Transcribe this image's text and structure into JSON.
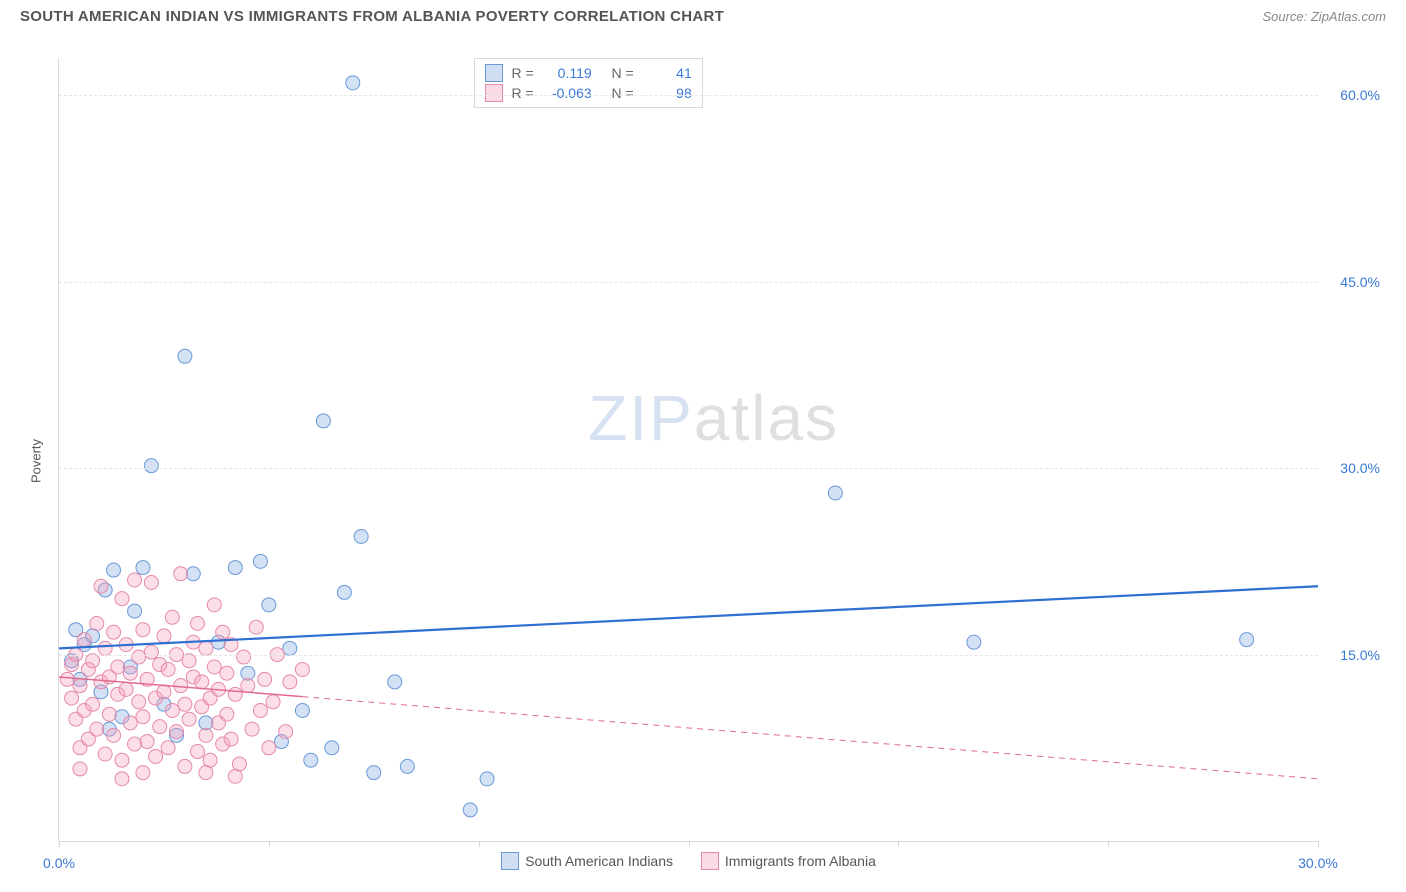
{
  "header": {
    "title": "SOUTH AMERICAN INDIAN VS IMMIGRANTS FROM ALBANIA POVERTY CORRELATION CHART",
    "source": "Source: ZipAtlas.com"
  },
  "chart": {
    "type": "scatter",
    "ylabel": "Poverty",
    "xlim": [
      0,
      30
    ],
    "ylim": [
      0,
      63
    ],
    "xticks": [
      0,
      5,
      10,
      15,
      20,
      25,
      30
    ],
    "xtick_labels": [
      "0.0%",
      "",
      "",
      "",
      "",
      "",
      "30.0%"
    ],
    "yticks": [
      15,
      30,
      45,
      60
    ],
    "ytick_labels": [
      "15.0%",
      "30.0%",
      "45.0%",
      "60.0%"
    ],
    "grid_color": "#e5e5e5",
    "axis_color": "#d9d9d9",
    "background_color": "#ffffff",
    "watermark": {
      "zip": "ZIP",
      "atlas": "atlas"
    },
    "series": [
      {
        "name": "South American Indians",
        "color_fill": "rgba(130,170,225,0.35)",
        "color_stroke": "#6a99d8",
        "marker_radius": 7,
        "stats": {
          "R": "0.119",
          "N": "41"
        },
        "trend": {
          "y_at_x0": 15.5,
          "y_at_xmax": 20.5,
          "stroke": "#2e6fd1",
          "width": 2.2,
          "dash": "",
          "solid_until_x": 30
        },
        "points": [
          [
            0.3,
            14.5
          ],
          [
            0.4,
            17
          ],
          [
            0.5,
            13
          ],
          [
            0.6,
            15.8
          ],
          [
            0.8,
            16.5
          ],
          [
            1.0,
            12
          ],
          [
            1.1,
            20.2
          ],
          [
            1.3,
            21.8
          ],
          [
            1.5,
            10
          ],
          [
            1.7,
            14
          ],
          [
            1.8,
            18.5
          ],
          [
            2.0,
            22
          ],
          [
            2.2,
            30.2
          ],
          [
            2.5,
            11
          ],
          [
            3.0,
            39
          ],
          [
            3.2,
            21.5
          ],
          [
            3.5,
            9.5
          ],
          [
            4.2,
            22
          ],
          [
            4.5,
            13.5
          ],
          [
            5.0,
            19
          ],
          [
            5.3,
            8
          ],
          [
            5.5,
            15.5
          ],
          [
            5.8,
            10.5
          ],
          [
            6.0,
            6.5
          ],
          [
            6.3,
            33.8
          ],
          [
            6.5,
            7.5
          ],
          [
            6.8,
            20
          ],
          [
            7.0,
            61
          ],
          [
            7.2,
            24.5
          ],
          [
            7.5,
            5.5
          ],
          [
            8.0,
            12.8
          ],
          [
            8.3,
            6
          ],
          [
            9.8,
            2.5
          ],
          [
            10.2,
            5
          ],
          [
            18.5,
            28
          ],
          [
            21.8,
            16
          ],
          [
            28.3,
            16.2
          ],
          [
            2.8,
            8.5
          ],
          [
            3.8,
            16
          ],
          [
            1.2,
            9
          ],
          [
            4.8,
            22.5
          ]
        ]
      },
      {
        "name": "Immigrants from Albania",
        "color_fill": "rgba(245,160,190,0.35)",
        "color_stroke": "#e58aa8",
        "marker_radius": 7,
        "stats": {
          "R": "-0.063",
          "N": "98"
        },
        "trend": {
          "y_at_x0": 13.2,
          "y_at_xmax": 5.0,
          "stroke": "#e26a8f",
          "width": 1.5,
          "dash": "6,5",
          "solid_until_x": 5.8
        },
        "points": [
          [
            0.2,
            13
          ],
          [
            0.3,
            11.5
          ],
          [
            0.3,
            14.2
          ],
          [
            0.4,
            9.8
          ],
          [
            0.4,
            15
          ],
          [
            0.5,
            12.5
          ],
          [
            0.5,
            7.5
          ],
          [
            0.6,
            16.2
          ],
          [
            0.6,
            10.5
          ],
          [
            0.7,
            13.8
          ],
          [
            0.7,
            8.2
          ],
          [
            0.8,
            14.5
          ],
          [
            0.8,
            11
          ],
          [
            0.9,
            17.5
          ],
          [
            0.9,
            9
          ],
          [
            1.0,
            12.8
          ],
          [
            1.0,
            20.5
          ],
          [
            1.1,
            15.5
          ],
          [
            1.1,
            7
          ],
          [
            1.2,
            13.2
          ],
          [
            1.2,
            10.2
          ],
          [
            1.3,
            16.8
          ],
          [
            1.3,
            8.5
          ],
          [
            1.4,
            14
          ],
          [
            1.4,
            11.8
          ],
          [
            1.5,
            19.5
          ],
          [
            1.5,
            6.5
          ],
          [
            1.6,
            12.2
          ],
          [
            1.6,
            15.8
          ],
          [
            1.7,
            9.5
          ],
          [
            1.7,
            13.5
          ],
          [
            1.8,
            21
          ],
          [
            1.8,
            7.8
          ],
          [
            1.9,
            11.2
          ],
          [
            1.9,
            14.8
          ],
          [
            2.0,
            17
          ],
          [
            2.0,
            10
          ],
          [
            2.1,
            13
          ],
          [
            2.1,
            8
          ],
          [
            2.2,
            15.2
          ],
          [
            2.2,
            20.8
          ],
          [
            2.3,
            11.5
          ],
          [
            2.3,
            6.8
          ],
          [
            2.4,
            14.2
          ],
          [
            2.4,
            9.2
          ],
          [
            2.5,
            16.5
          ],
          [
            2.5,
            12
          ],
          [
            2.6,
            7.5
          ],
          [
            2.6,
            13.8
          ],
          [
            2.7,
            18
          ],
          [
            2.7,
            10.5
          ],
          [
            2.8,
            15
          ],
          [
            2.8,
            8.8
          ],
          [
            2.9,
            12.5
          ],
          [
            2.9,
            21.5
          ],
          [
            3.0,
            11
          ],
          [
            3.0,
            6
          ],
          [
            3.1,
            14.5
          ],
          [
            3.1,
            9.8
          ],
          [
            3.2,
            16
          ],
          [
            3.2,
            13.2
          ],
          [
            3.3,
            7.2
          ],
          [
            3.3,
            17.5
          ],
          [
            3.4,
            10.8
          ],
          [
            3.4,
            12.8
          ],
          [
            3.5,
            8.5
          ],
          [
            3.5,
            15.5
          ],
          [
            3.6,
            11.5
          ],
          [
            3.6,
            6.5
          ],
          [
            3.7,
            14
          ],
          [
            3.7,
            19
          ],
          [
            3.8,
            9.5
          ],
          [
            3.8,
            12.2
          ],
          [
            3.9,
            16.8
          ],
          [
            3.9,
            7.8
          ],
          [
            4.0,
            13.5
          ],
          [
            4.0,
            10.2
          ],
          [
            4.1,
            15.8
          ],
          [
            4.1,
            8.2
          ],
          [
            4.2,
            11.8
          ],
          [
            4.3,
            6.2
          ],
          [
            4.4,
            14.8
          ],
          [
            4.5,
            12.5
          ],
          [
            4.6,
            9
          ],
          [
            4.7,
            17.2
          ],
          [
            4.8,
            10.5
          ],
          [
            4.9,
            13
          ],
          [
            5.0,
            7.5
          ],
          [
            5.1,
            11.2
          ],
          [
            5.2,
            15
          ],
          [
            5.4,
            8.8
          ],
          [
            5.5,
            12.8
          ],
          [
            5.8,
            13.8
          ],
          [
            2.0,
            5.5
          ],
          [
            1.5,
            5
          ],
          [
            3.5,
            5.5
          ],
          [
            0.5,
            5.8
          ],
          [
            4.2,
            5.2
          ]
        ]
      }
    ],
    "stats_box_labels": {
      "R": "R =",
      "N": "N ="
    },
    "legend_series": [
      {
        "swatch": "sw-blue",
        "label": "South American Indians"
      },
      {
        "swatch": "sw-pink",
        "label": "Immigrants from Albania"
      }
    ]
  }
}
